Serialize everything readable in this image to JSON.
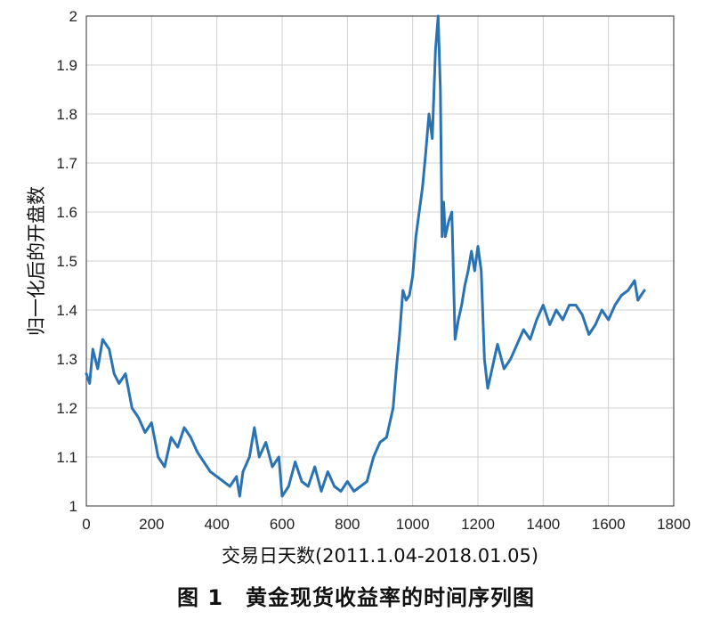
{
  "caption": "图 1　黄金现货收益率的时间序列图",
  "chart_data": {
    "type": "line",
    "xlabel": "交易日天数(2011.1.04-2018.01.05)",
    "ylabel": "归一化后的开盘数",
    "xlim": [
      0,
      1800
    ],
    "ylim": [
      1,
      2
    ],
    "xticks": [
      0,
      200,
      400,
      600,
      800,
      1000,
      1200,
      1400,
      1600,
      1800
    ],
    "yticks": [
      1,
      1.1,
      1.2,
      1.3,
      1.4,
      1.5,
      1.6,
      1.7,
      1.8,
      1.9,
      2
    ],
    "grid": true,
    "line_color": "#2a73b3",
    "series": [
      {
        "x": [
          0,
          10,
          20,
          35,
          50,
          70,
          85,
          100,
          120,
          140,
          160,
          180,
          200,
          220,
          240,
          260,
          280,
          300,
          320,
          340,
          360,
          380,
          400,
          420,
          440,
          460,
          470,
          480,
          500,
          515,
          530,
          550,
          570,
          590,
          600,
          620,
          640,
          660,
          680,
          700,
          720,
          740,
          760,
          780,
          800,
          820,
          840,
          860,
          880,
          900,
          920,
          940,
          950,
          960,
          970,
          980,
          990,
          1000,
          1010,
          1020,
          1030,
          1040,
          1050,
          1060,
          1070,
          1078,
          1085,
          1090,
          1095,
          1100,
          1110,
          1120,
          1130,
          1140,
          1150,
          1160,
          1170,
          1180,
          1190,
          1200,
          1210,
          1220,
          1230,
          1240,
          1250,
          1260,
          1280,
          1300,
          1320,
          1340,
          1360,
          1380,
          1400,
          1420,
          1440,
          1460,
          1480,
          1500,
          1520,
          1540,
          1560,
          1580,
          1600,
          1620,
          1640,
          1660,
          1680,
          1690,
          1700,
          1710
        ],
        "values": [
          1.27,
          1.25,
          1.32,
          1.28,
          1.34,
          1.32,
          1.27,
          1.25,
          1.27,
          1.2,
          1.18,
          1.15,
          1.17,
          1.1,
          1.08,
          1.14,
          1.12,
          1.16,
          1.14,
          1.11,
          1.09,
          1.07,
          1.06,
          1.05,
          1.04,
          1.06,
          1.02,
          1.07,
          1.1,
          1.16,
          1.1,
          1.13,
          1.08,
          1.1,
          1.02,
          1.04,
          1.09,
          1.05,
          1.04,
          1.08,
          1.03,
          1.07,
          1.04,
          1.03,
          1.05,
          1.03,
          1.04,
          1.05,
          1.1,
          1.13,
          1.14,
          1.2,
          1.28,
          1.35,
          1.44,
          1.42,
          1.43,
          1.47,
          1.55,
          1.6,
          1.65,
          1.72,
          1.8,
          1.75,
          1.93,
          2.0,
          1.85,
          1.55,
          1.62,
          1.55,
          1.58,
          1.6,
          1.34,
          1.38,
          1.41,
          1.45,
          1.48,
          1.52,
          1.48,
          1.53,
          1.48,
          1.3,
          1.24,
          1.27,
          1.3,
          1.33,
          1.28,
          1.3,
          1.33,
          1.36,
          1.34,
          1.38,
          1.41,
          1.37,
          1.4,
          1.38,
          1.41,
          1.41,
          1.39,
          1.35,
          1.37,
          1.4,
          1.38,
          1.41,
          1.43,
          1.44,
          1.46,
          1.42,
          1.43,
          1.44
        ]
      }
    ]
  }
}
